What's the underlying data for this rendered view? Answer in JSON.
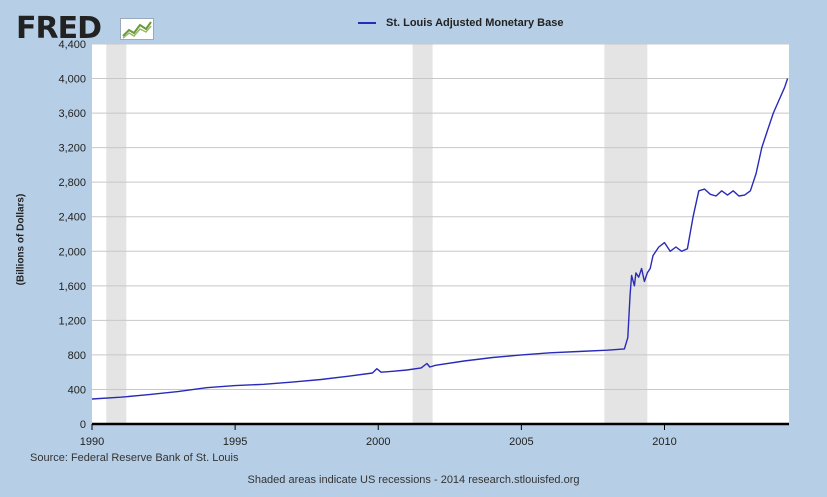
{
  "logo": {
    "text": "FRED"
  },
  "chart_data": {
    "type": "line",
    "title": "",
    "xlabel": "",
    "ylabel": "(Billions of Dollars)",
    "xlim": [
      1990.0,
      2014.35
    ],
    "ylim": [
      0,
      4400
    ],
    "yticks": [
      0,
      400,
      800,
      1200,
      1600,
      2000,
      2400,
      2800,
      3200,
      3600,
      4000,
      4400
    ],
    "ytick_labels": [
      "0",
      "400",
      "800",
      "1,200",
      "1,600",
      "2,000",
      "2,400",
      "2,800",
      "3,200",
      "3,600",
      "4,000",
      "4,400"
    ],
    "xticks": [
      1990,
      1995,
      2000,
      2005,
      2010
    ],
    "xtick_labels": [
      "1990",
      "1995",
      "2000",
      "2005",
      "2010"
    ],
    "grid": true,
    "legend_position": "top-center",
    "recessions": [
      [
        1990.5,
        1991.2
      ],
      [
        2001.2,
        2001.9
      ],
      [
        2007.9,
        2009.4
      ]
    ],
    "series": [
      {
        "name": "St. Louis Adjusted Monetary Base",
        "color": "#2a2ab8",
        "x": [
          1990.0,
          1991.0,
          1992.0,
          1993.0,
          1994.0,
          1995.0,
          1996.0,
          1997.0,
          1998.0,
          1999.0,
          1999.8,
          1999.95,
          2000.1,
          2000.5,
          2001.0,
          2001.5,
          2001.7,
          2001.8,
          2002.0,
          2003.0,
          2004.0,
          2005.0,
          2006.0,
          2007.0,
          2008.0,
          2008.6,
          2008.72,
          2008.8,
          2008.85,
          2008.95,
          2009.0,
          2009.1,
          2009.2,
          2009.3,
          2009.4,
          2009.5,
          2009.6,
          2009.8,
          2010.0,
          2010.2,
          2010.4,
          2010.6,
          2010.8,
          2011.0,
          2011.2,
          2011.4,
          2011.6,
          2011.8,
          2012.0,
          2012.2,
          2012.4,
          2012.6,
          2012.8,
          2013.0,
          2013.2,
          2013.4,
          2013.6,
          2013.8,
          2014.0,
          2014.2,
          2014.3
        ],
        "values": [
          290,
          310,
          340,
          375,
          420,
          445,
          460,
          485,
          515,
          555,
          590,
          640,
          600,
          610,
          625,
          650,
          700,
          660,
          680,
          730,
          770,
          800,
          825,
          840,
          855,
          870,
          1000,
          1500,
          1720,
          1600,
          1750,
          1700,
          1800,
          1650,
          1750,
          1800,
          1950,
          2050,
          2100,
          2000,
          2050,
          2000,
          2030,
          2400,
          2700,
          2720,
          2660,
          2640,
          2700,
          2650,
          2700,
          2640,
          2650,
          2700,
          2900,
          3200,
          3400,
          3600,
          3750,
          3900,
          4000
        ]
      }
    ]
  },
  "footer": {
    "source": "Source: Federal Reserve Bank of St. Louis",
    "note": "Shaded areas indicate US recessions - 2014 research.stlouisfed.org"
  }
}
